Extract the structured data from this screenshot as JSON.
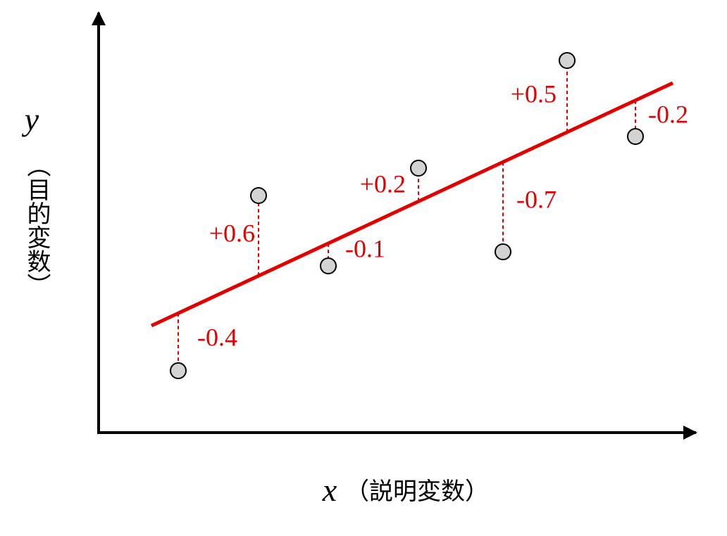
{
  "y_axis": {
    "symbol": "y",
    "label": "（目的変数）"
  },
  "x_axis": {
    "symbol": "x",
    "label": "（説明変数）"
  },
  "residuals": [
    "-0.4",
    "+0.6",
    "-0.1",
    "+0.2",
    "-0.7",
    "+0.5",
    "-0.2"
  ]
}
